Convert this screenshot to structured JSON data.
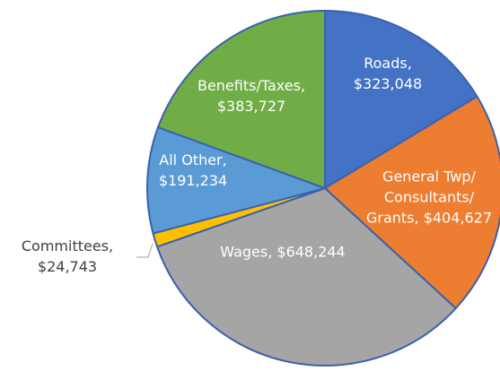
{
  "chart_data": {
    "type": "pie",
    "categories": [
      "Roads,",
      "General Twp/Consultants/Grants,",
      "Wages,",
      "Committees,",
      "All Other,",
      "Benefits/Taxes,"
    ],
    "values": [
      323048,
      404627,
      648244,
      24743,
      191234,
      383727
    ],
    "value_labels": [
      "$323,048",
      "$404,627",
      "$648,244",
      "$24,743",
      "$191,234",
      "$383,727"
    ],
    "colors": [
      "#4472c4",
      "#ed7d31",
      "#a5a5a5",
      "#ffc000",
      "#5b9bd5",
      "#70ad47"
    ]
  }
}
